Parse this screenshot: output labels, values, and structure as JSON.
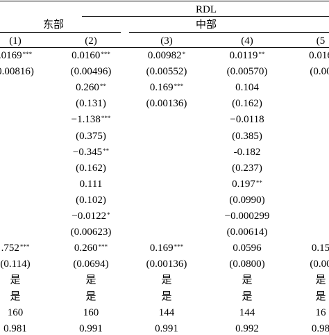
{
  "header": {
    "dep_var": "RDL",
    "group_east": "东部",
    "group_central": "中部"
  },
  "columns": [
    "(1)",
    "(2)",
    "(3)",
    "(4)",
    "(5"
  ],
  "rows": [
    [
      ".0169***",
      "0.0160***",
      "0.00982*",
      "0.0119**",
      "0.016"
    ],
    [
      "0.00816)",
      "(0.00496)",
      "(0.00552)",
      "(0.00570)",
      "(0.00"
    ],
    [
      "",
      "0.260**",
      "0.169***",
      "0.104",
      ""
    ],
    [
      "",
      "(0.131)",
      "(0.00136)",
      "(0.162)",
      ""
    ],
    [
      "",
      "−1.138***",
      "",
      "−0.0118",
      ""
    ],
    [
      "",
      "(0.375)",
      "",
      "(0.385)",
      ""
    ],
    [
      "",
      "−0.345**",
      "",
      "-0.182",
      ""
    ],
    [
      "",
      "(0.162)",
      "",
      "(0.237)",
      ""
    ],
    [
      "",
      "0.111",
      "",
      "0.197**",
      ""
    ],
    [
      "",
      "(0.102)",
      "",
      "(0.0990)",
      ""
    ],
    [
      "",
      "−0.0122*",
      "",
      "−0.000299",
      ""
    ],
    [
      "",
      "(0.00623)",
      "",
      "(0.00614)",
      ""
    ],
    [
      ".752***",
      "0.260***",
      "0.169***",
      "0.0596",
      "0.15"
    ],
    [
      "(0.114)",
      "(0.0694)",
      "(0.00136)",
      "(0.0800)",
      "(0.00"
    ],
    [
      "是",
      "是",
      "是",
      "是",
      "是"
    ],
    [
      "是",
      "是",
      "是",
      "是",
      "是"
    ],
    [
      "160",
      "160",
      "144",
      "144",
      "16"
    ],
    [
      "0.981",
      "0.991",
      "0.991",
      "0.992",
      "0.98"
    ]
  ]
}
